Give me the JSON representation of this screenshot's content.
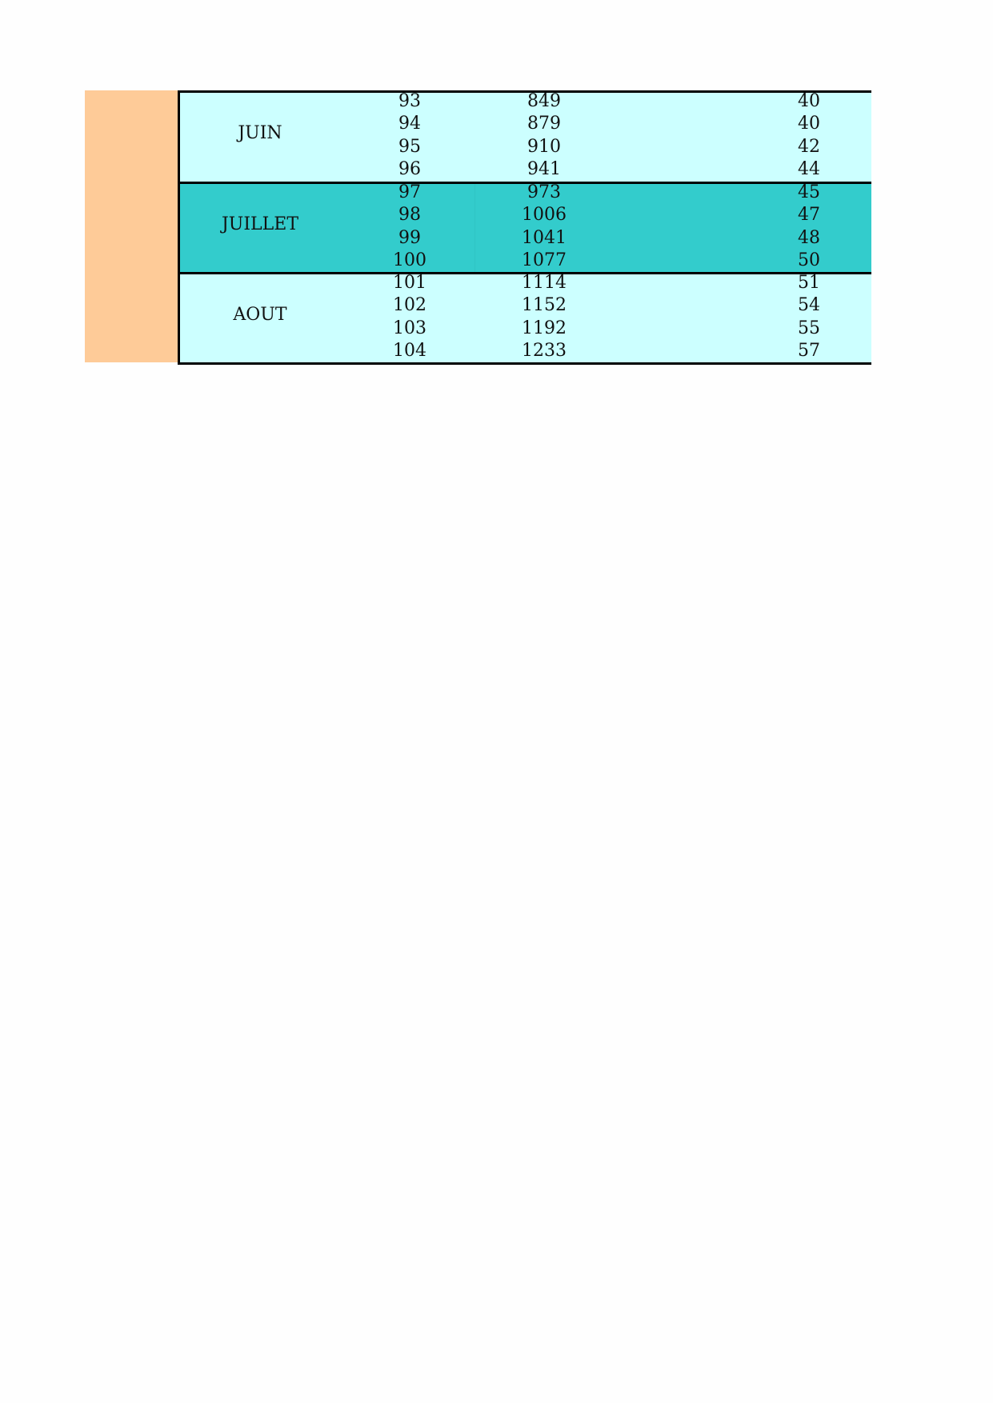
{
  "colors": {
    "side": "#fecb98",
    "light": "#ccffff",
    "dark": "#33cccc"
  },
  "groups": [
    {
      "month": "JUIN",
      "rows": [
        [
          "93",
          "849",
          "40"
        ],
        [
          "94",
          "879",
          "40"
        ],
        [
          "95",
          "910",
          "42"
        ],
        [
          "96",
          "941",
          "44"
        ]
      ]
    },
    {
      "month": "JUILLET",
      "rows": [
        [
          "97",
          "973",
          "45"
        ],
        [
          "98",
          "1006",
          "47"
        ],
        [
          "99",
          "1041",
          "48"
        ],
        [
          "100",
          "1077",
          "50"
        ]
      ]
    },
    {
      "month": "AOUT",
      "rows": [
        [
          "101",
          "1114",
          "51"
        ],
        [
          "102",
          "1152",
          "54"
        ],
        [
          "103",
          "1192",
          "55"
        ],
        [
          "104",
          "1233",
          "57"
        ]
      ]
    }
  ]
}
